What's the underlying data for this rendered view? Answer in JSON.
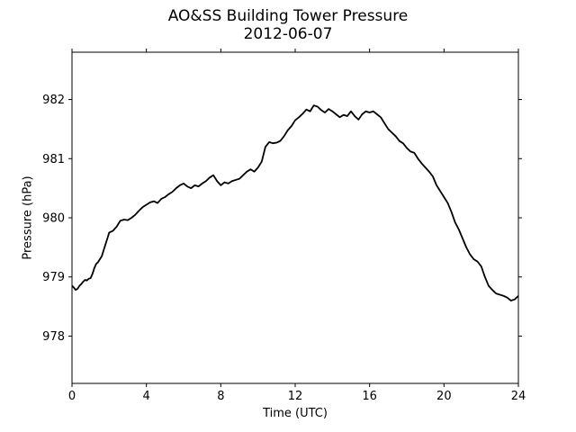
{
  "chart_data": {
    "type": "line",
    "title": "AO&SS Building Tower Pressure",
    "subtitle": "2012-06-07",
    "xlabel": "Time (UTC)",
    "ylabel": "Pressure (hPa)",
    "xlim": [
      0,
      24
    ],
    "ylim": [
      977.2,
      982.8
    ],
    "xticks": [
      0,
      4,
      8,
      12,
      16,
      20,
      24
    ],
    "yticks": [
      978,
      979,
      980,
      981,
      982
    ],
    "grid": false,
    "line_color": "#000000",
    "series": [
      {
        "x": [
          0,
          0.1,
          0.2,
          0.3,
          0.4,
          0.5,
          0.6,
          0.7,
          0.8,
          0.9,
          1.0,
          1.1,
          1.2,
          1.3,
          1.4,
          1.5,
          1.6,
          1.7,
          1.8,
          1.9,
          2.0,
          2.2,
          2.4,
          2.6,
          2.8,
          3.0,
          3.2,
          3.4,
          3.6,
          3.8,
          4.0,
          4.2,
          4.4,
          4.6,
          4.8,
          5.0,
          5.2,
          5.4,
          5.6,
          5.8,
          6.0,
          6.2,
          6.4,
          6.6,
          6.8,
          7.0,
          7.2,
          7.4,
          7.6,
          7.8,
          8.0,
          8.2,
          8.4,
          8.6,
          8.8,
          9.0,
          9.2,
          9.4,
          9.6,
          9.8,
          10.0,
          10.2,
          10.4,
          10.6,
          10.8,
          11.0,
          11.2,
          11.4,
          11.6,
          11.8,
          12.0,
          12.2,
          12.4,
          12.6,
          12.8,
          13.0,
          13.2,
          13.4,
          13.6,
          13.8,
          14.0,
          14.2,
          14.4,
          14.6,
          14.8,
          15.0,
          15.2,
          15.4,
          15.6,
          15.8,
          16.0,
          16.2,
          16.4,
          16.6,
          16.8,
          17.0,
          17.2,
          17.4,
          17.6,
          17.8,
          18.0,
          18.2,
          18.4,
          18.6,
          18.8,
          19.0,
          19.2,
          19.4,
          19.6,
          19.8,
          20.0,
          20.2,
          20.4,
          20.6,
          20.8,
          21.0,
          21.2,
          21.4,
          21.6,
          21.8,
          22.0,
          22.2,
          22.4,
          22.6,
          22.8,
          23.0,
          23.2,
          23.4,
          23.6,
          23.8,
          24.0
        ],
        "values": [
          978.85,
          978.82,
          978.78,
          978.8,
          978.85,
          978.88,
          978.92,
          978.95,
          978.94,
          978.97,
          978.98,
          979.05,
          979.15,
          979.22,
          979.25,
          979.3,
          979.35,
          979.45,
          979.55,
          979.65,
          979.75,
          979.78,
          979.85,
          979.95,
          979.97,
          979.96,
          980.0,
          980.05,
          980.12,
          980.18,
          980.22,
          980.26,
          980.28,
          980.25,
          980.32,
          980.35,
          980.4,
          980.44,
          980.5,
          980.55,
          980.58,
          980.53,
          980.5,
          980.55,
          980.53,
          980.58,
          980.62,
          980.68,
          980.72,
          980.62,
          980.55,
          980.6,
          980.58,
          980.62,
          980.64,
          980.66,
          980.72,
          980.78,
          980.82,
          980.78,
          980.85,
          980.95,
          981.2,
          981.28,
          981.26,
          981.27,
          981.3,
          981.38,
          981.48,
          981.55,
          981.65,
          981.7,
          981.76,
          981.83,
          981.8,
          981.9,
          981.88,
          981.82,
          981.78,
          981.84,
          981.8,
          981.75,
          981.7,
          981.74,
          981.72,
          981.8,
          981.72,
          981.66,
          981.75,
          981.8,
          981.78,
          981.8,
          981.75,
          981.7,
          981.6,
          981.5,
          981.44,
          981.38,
          981.3,
          981.26,
          981.18,
          981.12,
          981.1,
          981.0,
          980.92,
          980.85,
          980.78,
          980.7,
          980.55,
          980.45,
          980.35,
          980.25,
          980.1,
          979.92,
          979.8,
          979.65,
          979.5,
          979.38,
          979.3,
          979.26,
          979.18,
          979.0,
          978.85,
          978.78,
          978.72,
          978.7,
          978.68,
          978.65,
          978.6,
          978.62,
          978.68
        ]
      }
    ]
  }
}
